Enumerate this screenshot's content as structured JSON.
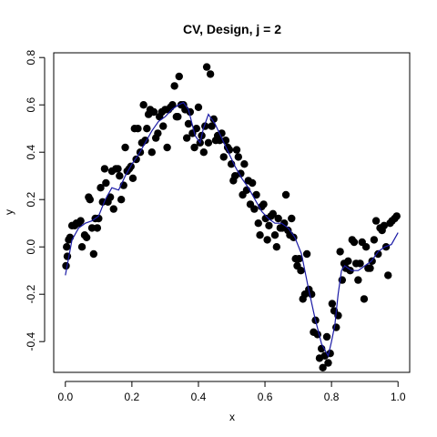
{
  "chart_data": {
    "type": "scatter",
    "title": "CV, Design, j = 2",
    "xlabel": "x",
    "ylabel": "y",
    "xlim": [
      -0.035,
      1.035
    ],
    "ylim": [
      -0.53,
      0.82
    ],
    "x_ticks": [
      0.0,
      0.2,
      0.4,
      0.6,
      0.8,
      1.0
    ],
    "x_tick_labels": [
      "0.0",
      "0.2",
      "0.4",
      "0.6",
      "0.8",
      "1.0"
    ],
    "y_ticks": [
      -0.4,
      -0.2,
      0.0,
      0.2,
      0.4,
      0.6,
      0.8
    ],
    "y_tick_labels": [
      "-0.4",
      "-0.2",
      "0.0",
      "0.2",
      "0.4",
      "0.6",
      "0.8"
    ],
    "grid": false,
    "colors": {
      "points": "#000000",
      "line": "#1a1aa6",
      "axes": "#000000"
    },
    "points": [
      [
        0.002,
        -0.08
      ],
      [
        0.004,
        0.0
      ],
      [
        0.006,
        -0.04
      ],
      [
        0.01,
        0.03
      ],
      [
        0.014,
        0.04
      ],
      [
        0.02,
        0.09
      ],
      [
        0.028,
        0.09
      ],
      [
        0.033,
        0.1
      ],
      [
        0.04,
        0.1
      ],
      [
        0.046,
        0.11
      ],
      [
        0.05,
        0.0
      ],
      [
        0.058,
        0.05
      ],
      [
        0.064,
        0.04
      ],
      [
        0.07,
        0.21
      ],
      [
        0.074,
        0.2
      ],
      [
        0.08,
        0.08
      ],
      [
        0.085,
        -0.03
      ],
      [
        0.09,
        0.12
      ],
      [
        0.096,
        0.08
      ],
      [
        0.1,
        0.12
      ],
      [
        0.106,
        0.25
      ],
      [
        0.112,
        0.19
      ],
      [
        0.118,
        0.33
      ],
      [
        0.122,
        0.27
      ],
      [
        0.128,
        0.19
      ],
      [
        0.135,
        0.21
      ],
      [
        0.14,
        0.32
      ],
      [
        0.145,
        0.16
      ],
      [
        0.152,
        0.33
      ],
      [
        0.158,
        0.33
      ],
      [
        0.163,
        0.3
      ],
      [
        0.168,
        0.2
      ],
      [
        0.175,
        0.26
      ],
      [
        0.18,
        0.42
      ],
      [
        0.186,
        0.32
      ],
      [
        0.192,
        0.33
      ],
      [
        0.197,
        0.34
      ],
      [
        0.203,
        0.29
      ],
      [
        0.208,
        0.5
      ],
      [
        0.213,
        0.37
      ],
      [
        0.218,
        0.5
      ],
      [
        0.225,
        0.4
      ],
      [
        0.23,
        0.44
      ],
      [
        0.235,
        0.6
      ],
      [
        0.24,
        0.45
      ],
      [
        0.245,
        0.5
      ],
      [
        0.25,
        0.56
      ],
      [
        0.255,
        0.58
      ],
      [
        0.26,
        0.4
      ],
      [
        0.266,
        0.57
      ],
      [
        0.272,
        0.46
      ],
      [
        0.278,
        0.48
      ],
      [
        0.283,
        0.55
      ],
      [
        0.29,
        0.57
      ],
      [
        0.294,
        0.51
      ],
      [
        0.3,
        0.58
      ],
      [
        0.306,
        0.42
      ],
      [
        0.31,
        0.58
      ],
      [
        0.316,
        0.59
      ],
      [
        0.322,
        0.6
      ],
      [
        0.328,
        0.68
      ],
      [
        0.334,
        0.55
      ],
      [
        0.338,
        0.55
      ],
      [
        0.342,
        0.72
      ],
      [
        0.348,
        0.6
      ],
      [
        0.355,
        0.6
      ],
      [
        0.36,
        0.58
      ],
      [
        0.365,
        0.46
      ],
      [
        0.37,
        0.52
      ],
      [
        0.375,
        0.57
      ],
      [
        0.382,
        0.48
      ],
      [
        0.388,
        0.42
      ],
      [
        0.394,
        0.5
      ],
      [
        0.4,
        0.59
      ],
      [
        0.405,
        0.44
      ],
      [
        0.41,
        0.47
      ],
      [
        0.416,
        0.4
      ],
      [
        0.42,
        0.51
      ],
      [
        0.425,
        0.76
      ],
      [
        0.43,
        0.44
      ],
      [
        0.436,
        0.73
      ],
      [
        0.44,
        0.51
      ],
      [
        0.446,
        0.54
      ],
      [
        0.452,
        0.45
      ],
      [
        0.458,
        0.47
      ],
      [
        0.464,
        0.45
      ],
      [
        0.47,
        0.48
      ],
      [
        0.476,
        0.38
      ],
      [
        0.482,
        0.45
      ],
      [
        0.488,
        0.42
      ],
      [
        0.493,
        0.41
      ],
      [
        0.499,
        0.35
      ],
      [
        0.505,
        0.28
      ],
      [
        0.51,
        0.3
      ],
      [
        0.515,
        0.41
      ],
      [
        0.52,
        0.38
      ],
      [
        0.527,
        0.31
      ],
      [
        0.533,
        0.22
      ],
      [
        0.538,
        0.35
      ],
      [
        0.545,
        0.24
      ],
      [
        0.55,
        0.28
      ],
      [
        0.556,
        0.18
      ],
      [
        0.562,
        0.27
      ],
      [
        0.568,
        0.16
      ],
      [
        0.574,
        0.22
      ],
      [
        0.58,
        0.1
      ],
      [
        0.585,
        0.05
      ],
      [
        0.59,
        0.17
      ],
      [
        0.596,
        0.18
      ],
      [
        0.602,
        0.12
      ],
      [
        0.607,
        0.03
      ],
      [
        0.612,
        0.09
      ],
      [
        0.618,
        0.13
      ],
      [
        0.624,
        0.14
      ],
      [
        0.63,
        0.05
      ],
      [
        0.635,
        0.0
      ],
      [
        0.64,
        0.12
      ],
      [
        0.646,
        0.08
      ],
      [
        0.652,
        0.08
      ],
      [
        0.658,
        0.1
      ],
      [
        0.663,
        0.22
      ],
      [
        0.669,
        0.07
      ],
      [
        0.675,
        0.05
      ],
      [
        0.68,
        0.12
      ],
      [
        0.686,
        0.04
      ],
      [
        0.692,
        -0.05
      ],
      [
        0.697,
        -0.08
      ],
      [
        0.703,
        -0.05
      ],
      [
        0.708,
        -0.1
      ],
      [
        0.714,
        -0.22
      ],
      [
        0.72,
        -0.2
      ],
      [
        0.726,
        -0.03
      ],
      [
        0.732,
        -0.18
      ],
      [
        0.74,
        -0.2
      ],
      [
        0.746,
        -0.36
      ],
      [
        0.752,
        -0.31
      ],
      [
        0.758,
        -0.37
      ],
      [
        0.764,
        -0.47
      ],
      [
        0.77,
        -0.43
      ],
      [
        0.774,
        -0.51
      ],
      [
        0.78,
        -0.46
      ],
      [
        0.786,
        -0.38
      ],
      [
        0.79,
        -0.49
      ],
      [
        0.796,
        -0.45
      ],
      [
        0.802,
        -0.24
      ],
      [
        0.808,
        -0.27
      ],
      [
        0.814,
        -0.34
      ],
      [
        0.82,
        -0.29
      ],
      [
        0.826,
        -0.02
      ],
      [
        0.832,
        -0.14
      ],
      [
        0.838,
        -0.07
      ],
      [
        0.843,
        -0.09
      ],
      [
        0.85,
        -0.06
      ],
      [
        0.856,
        -0.1
      ],
      [
        0.862,
        0.03
      ],
      [
        0.868,
        0.02
      ],
      [
        0.874,
        -0.07
      ],
      [
        0.88,
        -0.14
      ],
      [
        0.886,
        -0.07
      ],
      [
        0.892,
        0.02
      ],
      [
        0.898,
        -0.22
      ],
      [
        0.904,
        0.0
      ],
      [
        0.91,
        -0.09
      ],
      [
        0.916,
        -0.09
      ],
      [
        0.922,
        -0.06
      ],
      [
        0.928,
        0.03
      ],
      [
        0.934,
        0.11
      ],
      [
        0.94,
        -0.03
      ],
      [
        0.946,
        0.08
      ],
      [
        0.952,
        0.07
      ],
      [
        0.958,
        0.09
      ],
      [
        0.964,
        0.0
      ],
      [
        0.97,
        -0.12
      ],
      [
        0.976,
        0.1
      ],
      [
        0.982,
        0.11
      ],
      [
        0.99,
        0.12
      ],
      [
        0.996,
        0.13
      ]
    ],
    "fit_line": [
      [
        0.0,
        -0.12
      ],
      [
        0.02,
        0.03
      ],
      [
        0.04,
        0.08
      ],
      [
        0.06,
        0.1
      ],
      [
        0.08,
        0.11
      ],
      [
        0.1,
        0.13
      ],
      [
        0.12,
        0.2
      ],
      [
        0.14,
        0.25
      ],
      [
        0.16,
        0.24
      ],
      [
        0.18,
        0.3
      ],
      [
        0.2,
        0.35
      ],
      [
        0.22,
        0.39
      ],
      [
        0.24,
        0.44
      ],
      [
        0.26,
        0.49
      ],
      [
        0.28,
        0.53
      ],
      [
        0.3,
        0.55
      ],
      [
        0.32,
        0.58
      ],
      [
        0.34,
        0.6
      ],
      [
        0.355,
        0.61
      ],
      [
        0.37,
        0.58
      ],
      [
        0.39,
        0.47
      ],
      [
        0.405,
        0.44
      ],
      [
        0.415,
        0.5
      ],
      [
        0.43,
        0.56
      ],
      [
        0.45,
        0.52
      ],
      [
        0.47,
        0.46
      ],
      [
        0.49,
        0.4
      ],
      [
        0.51,
        0.34
      ],
      [
        0.53,
        0.29
      ],
      [
        0.55,
        0.25
      ],
      [
        0.57,
        0.2
      ],
      [
        0.59,
        0.15
      ],
      [
        0.61,
        0.12
      ],
      [
        0.63,
        0.1
      ],
      [
        0.65,
        0.1
      ],
      [
        0.67,
        0.08
      ],
      [
        0.69,
        0.04
      ],
      [
        0.71,
        -0.03
      ],
      [
        0.73,
        -0.17
      ],
      [
        0.75,
        -0.3
      ],
      [
        0.77,
        -0.41
      ],
      [
        0.79,
        -0.46
      ],
      [
        0.8,
        -0.4
      ],
      [
        0.81,
        -0.33
      ],
      [
        0.82,
        -0.2
      ],
      [
        0.83,
        -0.1
      ],
      [
        0.84,
        -0.08
      ],
      [
        0.86,
        -0.1
      ],
      [
        0.88,
        -0.1
      ],
      [
        0.9,
        -0.08
      ],
      [
        0.92,
        -0.06
      ],
      [
        0.94,
        -0.02
      ],
      [
        0.96,
        0.0
      ],
      [
        0.98,
        0.01
      ],
      [
        1.0,
        0.06
      ]
    ]
  }
}
